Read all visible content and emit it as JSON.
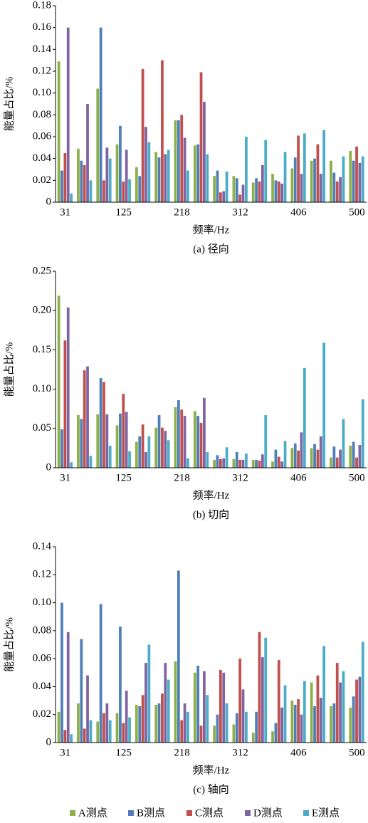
{
  "chart_data": [
    {
      "type": "bar",
      "title": "(a)  径向",
      "xlabel": "频率/Hz",
      "ylabel": "能量占比/%",
      "categories": [
        "31",
        null,
        null,
        "125",
        null,
        null,
        "218",
        null,
        null,
        "312",
        null,
        null,
        "406",
        null,
        null,
        "500"
      ],
      "ylim": [
        0,
        0.18
      ],
      "yticks": [
        0,
        0.02,
        0.04,
        0.06,
        0.08,
        {
          "value": 0.1,
          "label": "0.10"
        },
        0.12,
        0.14,
        0.16,
        0.18
      ],
      "series": [
        {
          "color": "#8db04a",
          "values": [
            0.129,
            0.049,
            0.104,
            0.053,
            0.032,
            0.046,
            0.075,
            0.052,
            0.024,
            0.024,
            0.018,
            0.026,
            0.031,
            0.038,
            0.038,
            0.047
          ]
        },
        {
          "color": "#4f7fb8",
          "values": [
            0.029,
            0.038,
            0.16,
            0.07,
            0.024,
            0.041,
            0.075,
            0.053,
            0.029,
            0.022,
            0.022,
            0.02,
            0.041,
            0.04,
            0.027,
            0.038
          ]
        },
        {
          "color": "#c0504d",
          "values": [
            0.045,
            0.034,
            0.02,
            0.019,
            0.122,
            0.13,
            0.08,
            0.119,
            0.009,
            0.007,
            0.019,
            0.019,
            0.061,
            0.053,
            0.019,
            0.051
          ]
        },
        {
          "color": "#8064a2",
          "values": [
            0.16,
            0.09,
            0.05,
            0.048,
            0.069,
            0.044,
            0.059,
            0.092,
            0.01,
            0.016,
            0.034,
            0.017,
            0.026,
            0.026,
            0.023,
            0.036
          ]
        },
        {
          "color": "#4bacc6",
          "values": [
            0.008,
            0.02,
            0.04,
            0.021,
            0.055,
            0.048,
            0.029,
            0.044,
            0.028,
            0.06,
            0.057,
            0.046,
            0.063,
            0.066,
            0.042,
            0.042
          ]
        }
      ]
    },
    {
      "type": "bar",
      "title": "(b)  切向",
      "xlabel": "频率/Hz",
      "ylabel": "能量占比/%",
      "categories": [
        "31",
        null,
        null,
        "125",
        null,
        null,
        "218",
        null,
        null,
        "312",
        null,
        null,
        "406",
        null,
        null,
        "500"
      ],
      "ylim": [
        0,
        0.25
      ],
      "yticks": [
        0,
        0.05,
        {
          "value": 0.1,
          "label": "0.10"
        },
        0.15,
        {
          "value": 0.2,
          "label": "0.20"
        },
        0.25
      ],
      "series": [
        {
          "color": "#8db04a",
          "values": [
            0.219,
            0.067,
            0.068,
            0.054,
            0.033,
            0.051,
            0.077,
            0.072,
            0.01,
            0.011,
            0.01,
            0.008,
            0.025,
            0.025,
            0.013,
            0.028
          ]
        },
        {
          "color": "#4f7fb8",
          "values": [
            0.049,
            0.062,
            0.114,
            0.069,
            0.04,
            0.067,
            0.086,
            0.066,
            0.016,
            0.02,
            0.01,
            0.023,
            0.031,
            0.03,
            0.027,
            0.033
          ]
        },
        {
          "color": "#c0504d",
          "values": [
            0.162,
            0.124,
            0.109,
            0.094,
            0.055,
            0.051,
            0.074,
            0.057,
            0.011,
            0.01,
            0.009,
            0.014,
            0.022,
            0.023,
            0.013,
            0.013
          ]
        },
        {
          "color": "#8064a2",
          "values": [
            0.204,
            0.129,
            0.068,
            0.071,
            0.02,
            0.047,
            0.066,
            0.089,
            0.012,
            0.01,
            0.017,
            0.008,
            0.045,
            0.04,
            0.023,
            0.029
          ]
        },
        {
          "color": "#4bacc6",
          "values": [
            0.007,
            0.015,
            0.028,
            0.021,
            0.04,
            0.035,
            0.012,
            0.02,
            0.026,
            0.018,
            0.067,
            0.034,
            0.127,
            0.159,
            0.062,
            0.087
          ]
        }
      ]
    },
    {
      "type": "bar",
      "title": "(c)  轴向",
      "xlabel": "频率/Hz",
      "ylabel": "能量占比/%",
      "categories": [
        "31",
        null,
        null,
        "125",
        null,
        null,
        "218",
        null,
        null,
        "312",
        null,
        null,
        "406",
        null,
        null,
        "500"
      ],
      "ylim": [
        0,
        0.14
      ],
      "yticks": [
        0,
        0.02,
        0.04,
        0.06,
        0.08,
        {
          "value": 0.1,
          "label": "0.10"
        },
        0.12,
        0.14
      ],
      "series": [
        {
          "name": "A测点",
          "color": "#8db04a",
          "values": [
            0.022,
            0.028,
            0.015,
            0.021,
            0.027,
            0.027,
            0.058,
            0.05,
            0.012,
            0.013,
            0.007,
            0.008,
            0.03,
            0.043,
            0.026,
            0.025
          ]
        },
        {
          "name": "B测点",
          "color": "#4f7fb8",
          "values": [
            0.1,
            0.074,
            0.099,
            0.083,
            0.026,
            0.028,
            0.123,
            0.055,
            0.02,
            0.021,
            0.022,
            0.014,
            0.027,
            0.026,
            0.028,
            0.033
          ]
        },
        {
          "name": "C测点",
          "color": "#c0504d",
          "values": [
            0.009,
            0.01,
            0.021,
            0.014,
            0.034,
            0.035,
            0.016,
            0.012,
            0.052,
            0.06,
            0.079,
            0.059,
            0.031,
            0.048,
            0.057,
            0.045
          ]
        },
        {
          "name": "D测点",
          "color": "#8064a2",
          "values": [
            0.079,
            0.048,
            0.028,
            0.037,
            0.057,
            0.057,
            0.028,
            0.051,
            0.05,
            0.038,
            0.061,
            0.025,
            0.02,
            0.032,
            0.043,
            0.047
          ]
        },
        {
          "name": "E测点",
          "color": "#4bacc6",
          "values": [
            0.006,
            0.016,
            0.016,
            0.018,
            0.07,
            0.045,
            0.022,
            0.034,
            0.028,
            0.022,
            0.075,
            0.041,
            0.044,
            0.069,
            0.051,
            0.072
          ]
        }
      ]
    }
  ]
}
